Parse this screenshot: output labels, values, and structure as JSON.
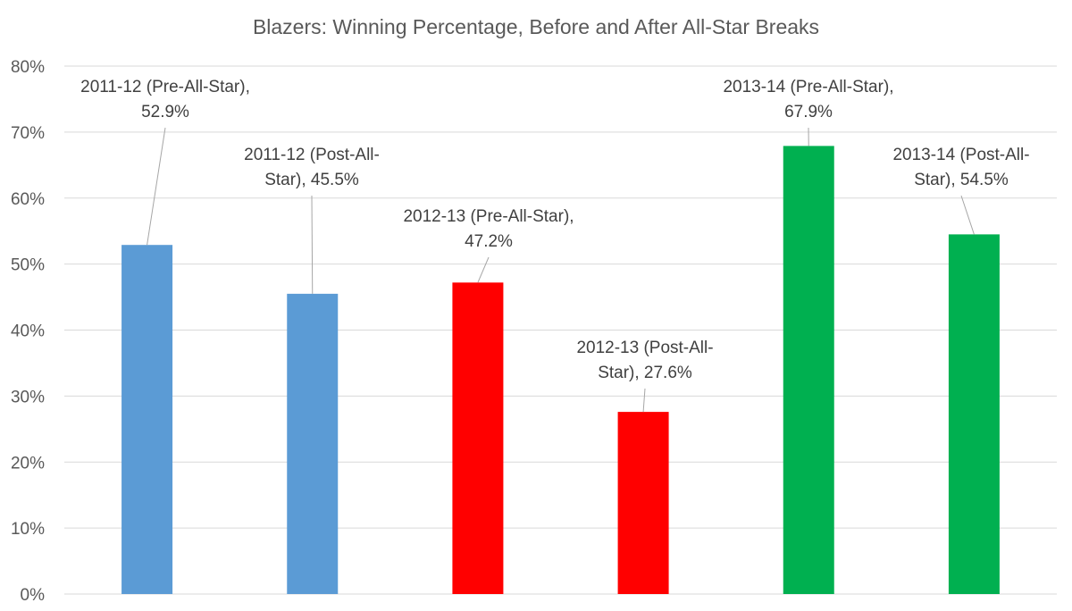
{
  "chart_data": {
    "type": "bar",
    "title": "Blazers: Winning Percentage, Before and After All-Star Breaks",
    "xlabel": "",
    "ylabel": "",
    "ylim": [
      0,
      80
    ],
    "y_ticks": [
      0,
      10,
      20,
      30,
      40,
      50,
      60,
      70,
      80
    ],
    "y_tick_labels": [
      "0%",
      "10%",
      "20%",
      "30%",
      "40%",
      "50%",
      "60%",
      "70%",
      "80%"
    ],
    "grid": true,
    "legend": "none",
    "categories": [
      "2011-12 (Pre-All-Star)",
      "2011-12 (Post-All-Star)",
      "2012-13 (Pre-All-Star)",
      "2012-13 (Post-All-Star)",
      "2013-14 (Pre-All-Star)",
      "2013-14 (Post-All-Star)"
    ],
    "values": [
      52.9,
      45.5,
      47.2,
      27.6,
      67.9,
      54.5
    ],
    "bar_colors": [
      "#5b9bd5",
      "#5b9bd5",
      "#ff0000",
      "#ff0000",
      "#00b050",
      "#00b050"
    ],
    "data_labels": [
      [
        "2011-12 (Pre-All-Star),",
        "52.9%"
      ],
      [
        "2011-12 (Post-All-",
        "Star), 45.5%"
      ],
      [
        "2012-13 (Pre-All-Star),",
        "47.2%"
      ],
      [
        "2012-13 (Post-All-",
        "Star), 27.6%"
      ],
      [
        "2013-14 (Pre-All-Star),",
        "67.9%"
      ],
      [
        "2013-14 (Post-All-",
        "Star), 54.5%"
      ]
    ]
  }
}
